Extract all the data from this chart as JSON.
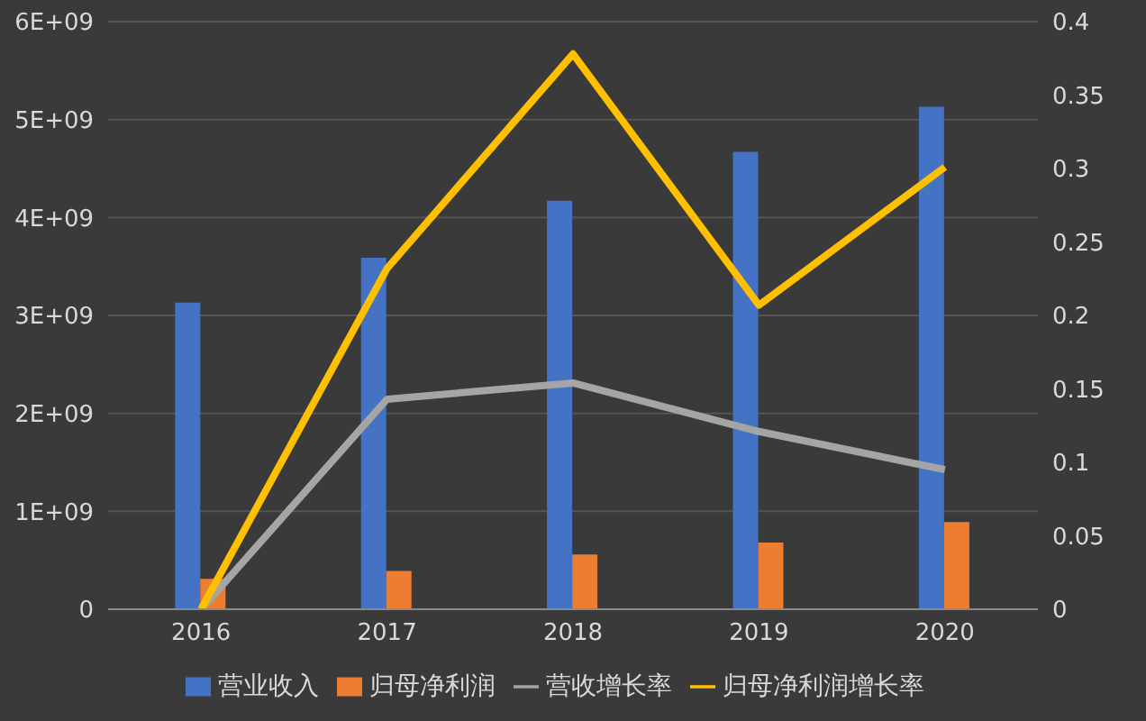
{
  "chart_data": {
    "type": "bar",
    "categories": [
      "2016",
      "2017",
      "2018",
      "2019",
      "2020"
    ],
    "series": [
      {
        "name": "营业收入",
        "color": "#4472c4",
        "values": [
          3130000000,
          3590000000,
          4170000000,
          4670000000,
          5130000000
        ]
      },
      {
        "name": "归母净利润",
        "color": "#ed7d31",
        "values": [
          310000000,
          390000000,
          560000000,
          680000000,
          890000000
        ]
      },
      {
        "name": "营收增长率",
        "type": "line",
        "axis": "y2",
        "color": "#a5a5a5",
        "values": [
          0,
          0.143,
          0.154,
          0.121,
          0.095
        ]
      },
      {
        "name": "归母净利润增长率",
        "type": "line",
        "axis": "y2",
        "color": "#ffc000",
        "values": [
          0,
          0.232,
          0.378,
          0.207,
          0.301
        ]
      }
    ],
    "ylim": [
      0,
      6000000000
    ],
    "yticks": [
      0,
      {
        "value": 1000000000,
        "label": "1E+09"
      },
      {
        "value": 2000000000,
        "label": "2E+09"
      },
      {
        "value": 3000000000,
        "label": "3E+09"
      },
      {
        "value": 4000000000,
        "label": "4E+09"
      },
      {
        "value": 5000000000,
        "label": "5E+09"
      },
      {
        "value": 6000000000,
        "label": "6E+09"
      }
    ],
    "y2lim": [
      0,
      0.4
    ],
    "y2ticks": [
      0,
      0.05,
      0.1,
      0.15,
      0.2,
      0.25,
      0.3,
      0.35,
      0.4
    ],
    "grid": "y",
    "legend": "bottom",
    "marker": "none",
    "line_style": "solid"
  }
}
